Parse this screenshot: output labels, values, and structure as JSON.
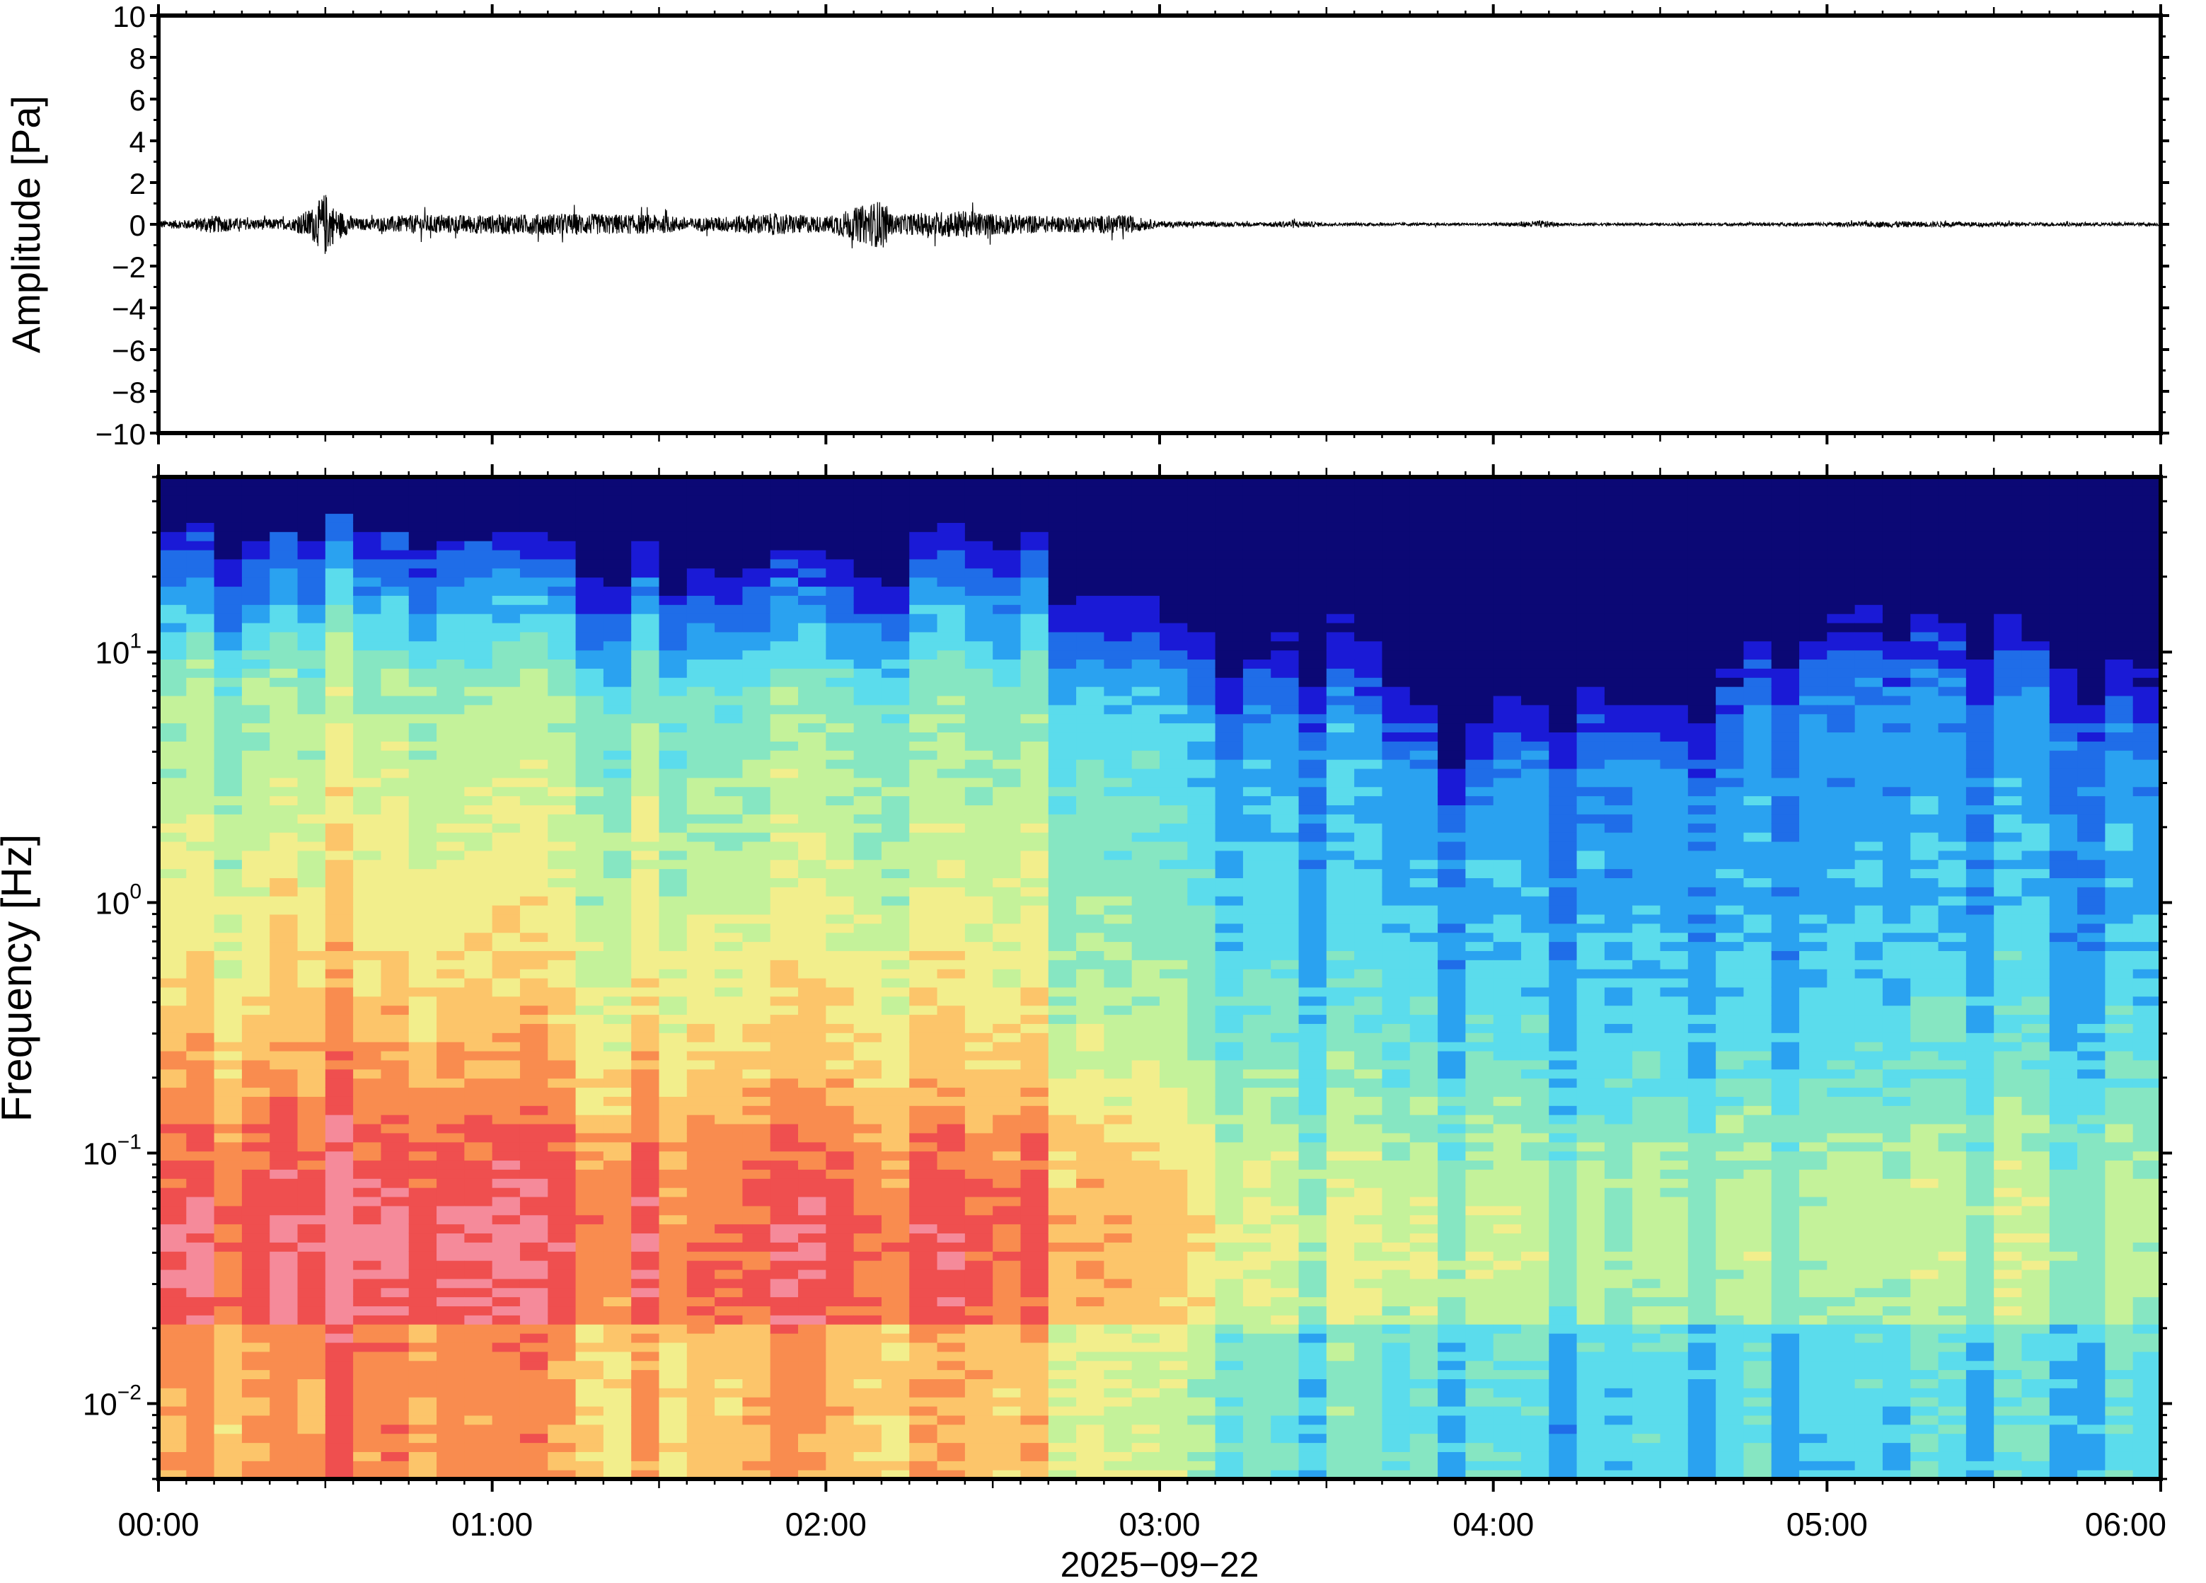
{
  "chart_data": [
    {
      "type": "line",
      "panel": "waveform",
      "ylabel": "Amplitude [Pa]",
      "ylim": [
        -10,
        10
      ],
      "yticks": [
        10,
        8,
        6,
        4,
        2,
        0,
        -2,
        -4,
        -6,
        -8,
        -10
      ],
      "ytick_labels": [
        "10",
        "8",
        "6",
        "4",
        "2",
        "0",
        "−2",
        "−4",
        "−6",
        "−8",
        "−10"
      ],
      "xlim_hours": [
        0,
        6
      ],
      "grid": false,
      "series": [
        {
          "color": "#000000",
          "envelope_hours": [
            0.0,
            0.1,
            0.15,
            0.25,
            0.4,
            0.47,
            0.5,
            0.53,
            0.6,
            0.75,
            1.0,
            1.2,
            1.5,
            1.6,
            1.85,
            2.0,
            2.17,
            2.2,
            2.4,
            2.5,
            2.7,
            2.9,
            3.0,
            3.3,
            3.4,
            3.5,
            4.0,
            4.15,
            4.2,
            4.5,
            5.0,
            5.2,
            5.6,
            6.0
          ],
          "envelope_pa": [
            0.25,
            0.3,
            0.6,
            0.35,
            0.35,
            1.2,
            2.1,
            1.0,
            0.35,
            0.6,
            0.6,
            0.7,
            0.6,
            0.4,
            0.7,
            0.5,
            1.6,
            0.6,
            0.9,
            0.7,
            0.5,
            0.6,
            0.2,
            0.12,
            0.25,
            0.1,
            0.08,
            0.25,
            0.08,
            0.08,
            0.12,
            0.2,
            0.12,
            0.1
          ]
        }
      ]
    },
    {
      "type": "heatmap",
      "panel": "spectrogram",
      "ylabel": "Frequency [Hz]",
      "yscale": "log",
      "ylim_hz": [
        0.005,
        50
      ],
      "yticks_hz": [
        0.01,
        0.1,
        1,
        10
      ],
      "ytick_labels": [
        {
          "base": "10",
          "exp": "−2"
        },
        {
          "base": "10",
          "exp": "−1"
        },
        {
          "base": "10",
          "exp": "0"
        },
        {
          "base": "10",
          "exp": "1"
        }
      ],
      "xlabel": "2025−09−22",
      "xlim_hours": [
        0,
        6
      ],
      "xtick_hours": [
        0,
        1,
        2,
        3,
        4,
        5,
        6
      ],
      "xtick_labels": [
        "00:00",
        "01:00",
        "02:00",
        "03:00",
        "04:00",
        "05:00",
        "06:00"
      ],
      "colormap": [
        "#0b0875",
        "#1a1ad6",
        "#1f6de8",
        "#2aa2f0",
        "#5bdcec",
        "#86e6c2",
        "#c4f29a",
        "#f2ee8c",
        "#fcc56a",
        "#f98c4f",
        "#ef4f4f",
        "#f58a9a"
      ],
      "column_count": 72,
      "row_count": 110,
      "low_freq_level_by_hour": {
        "hours": [
          0,
          0.5,
          1,
          1.5,
          2,
          2.4,
          2.9,
          3.1,
          3.5,
          4,
          4.5,
          5,
          5.5,
          6
        ],
        "level": [
          0.78,
          0.92,
          0.84,
          0.82,
          0.86,
          0.82,
          0.7,
          0.56,
          0.5,
          0.46,
          0.42,
          0.46,
          0.44,
          0.5
        ]
      },
      "upper_cutoff_hz_by_hour": {
        "hours": [
          0,
          0.5,
          1,
          1.5,
          2,
          2.4,
          2.9,
          3.1,
          3.5,
          3.9,
          4.2,
          4.6,
          5,
          5.5,
          6
        ],
        "hz": [
          25,
          32,
          26,
          24,
          24,
          30,
          20,
          13,
          16,
          6,
          11,
          9,
          24,
          20,
          13
        ]
      }
    }
  ]
}
